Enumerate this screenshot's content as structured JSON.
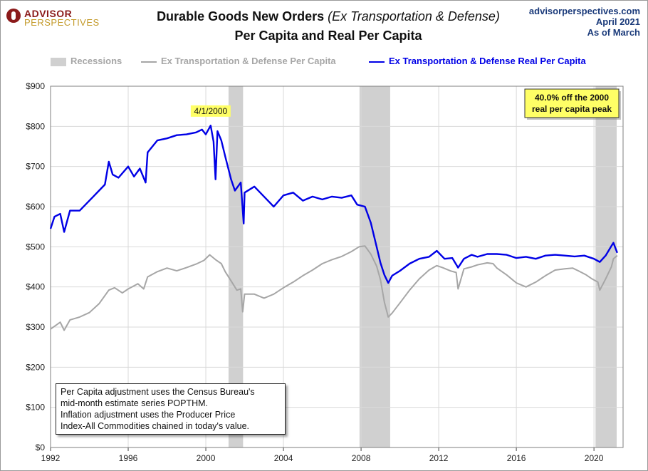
{
  "header": {
    "logo_top": "ADVISOR",
    "logo_bottom": "PERSPECTIVES",
    "title_main": "Durable Goods New Orders",
    "title_italic": "(Ex Transportation & Defense)",
    "title_line2": "Per Capita and Real Per Capita",
    "source_site": "advisorperspectives.com",
    "source_date": "April 2021",
    "source_asof": "As of March"
  },
  "legend": {
    "recessions": "Recessions",
    "per_capita": "Ex Transportation & Defense Per Capita",
    "real_per_capita": "Ex Transportation & Defense Real Per Capita"
  },
  "colors": {
    "recession": "#d0d0d0",
    "per_capita": "#a6a6a6",
    "real_per_capita": "#0000e6",
    "callout_bg": "#ffff66",
    "grid": "#d9d9d9"
  },
  "note": {
    "line1": "Per Capita adjustment uses the Census Bureau's",
    "line2": "mid-month estimate series POPTHM.",
    "line3": "Inflation adjustment uses the Producer Price",
    "line4": "Index-All Commodities chained in today's value."
  },
  "chart_data": {
    "type": "line",
    "xlim": [
      1992,
      2021.5
    ],
    "ylim": [
      0,
      900
    ],
    "x_ticks": [
      1992,
      1996,
      2000,
      2004,
      2008,
      2012,
      2016,
      2020
    ],
    "x_tick_labels": [
      "1992",
      "1996",
      "2000",
      "2004",
      "2008",
      "2012",
      "2016",
      "2020"
    ],
    "y_ticks": [
      0,
      100,
      200,
      300,
      400,
      500,
      600,
      700,
      800,
      900
    ],
    "y_tick_labels": [
      "$0",
      "$100",
      "$200",
      "$300",
      "$400",
      "$500",
      "$600",
      "$700",
      "$800",
      "$900"
    ],
    "grid": true,
    "recessions": [
      [
        2001.17,
        2001.92
      ],
      [
        2007.92,
        2009.5
      ],
      [
        2020.08,
        2021.17
      ]
    ],
    "annotations": [
      {
        "text": "4/1/2000",
        "x": 2000.25,
        "y": 808
      },
      {
        "text": "40.0% off the 2000",
        "text2": "real per capita peak",
        "position": "top-right"
      }
    ],
    "series": [
      {
        "name": "Ex Transportation & Defense Per Capita",
        "points": [
          [
            1992.0,
            295
          ],
          [
            1992.5,
            312
          ],
          [
            1992.7,
            292
          ],
          [
            1993.0,
            318
          ],
          [
            1993.5,
            325
          ],
          [
            1994.0,
            336
          ],
          [
            1994.5,
            358
          ],
          [
            1995.0,
            392
          ],
          [
            1995.3,
            398
          ],
          [
            1995.7,
            385
          ],
          [
            1996.0,
            395
          ],
          [
            1996.5,
            408
          ],
          [
            1996.8,
            395
          ],
          [
            1997.0,
            425
          ],
          [
            1997.5,
            438
          ],
          [
            1998.0,
            447
          ],
          [
            1998.5,
            440
          ],
          [
            1999.0,
            448
          ],
          [
            1999.5,
            457
          ],
          [
            1999.9,
            466
          ],
          [
            2000.2,
            480
          ],
          [
            2000.5,
            468
          ],
          [
            2000.8,
            458
          ],
          [
            2001.0,
            438
          ],
          [
            2001.3,
            415
          ],
          [
            2001.6,
            392
          ],
          [
            2001.8,
            395
          ],
          [
            2001.9,
            338
          ],
          [
            2002.0,
            382
          ],
          [
            2002.5,
            382
          ],
          [
            2003.0,
            372
          ],
          [
            2003.5,
            382
          ],
          [
            2004.0,
            398
          ],
          [
            2004.5,
            412
          ],
          [
            2005.0,
            428
          ],
          [
            2005.5,
            442
          ],
          [
            2006.0,
            458
          ],
          [
            2006.5,
            468
          ],
          [
            2007.0,
            476
          ],
          [
            2007.5,
            488
          ],
          [
            2007.9,
            500
          ],
          [
            2008.2,
            502
          ],
          [
            2008.5,
            482
          ],
          [
            2008.8,
            452
          ],
          [
            2009.0,
            418
          ],
          [
            2009.2,
            362
          ],
          [
            2009.4,
            325
          ],
          [
            2009.6,
            335
          ],
          [
            2010.0,
            360
          ],
          [
            2010.5,
            392
          ],
          [
            2011.0,
            420
          ],
          [
            2011.5,
            442
          ],
          [
            2011.9,
            453
          ],
          [
            2012.2,
            448
          ],
          [
            2012.6,
            440
          ],
          [
            2012.9,
            436
          ],
          [
            2013.0,
            395
          ],
          [
            2013.3,
            445
          ],
          [
            2013.7,
            450
          ],
          [
            2014.0,
            455
          ],
          [
            2014.5,
            460
          ],
          [
            2014.8,
            458
          ],
          [
            2015.0,
            447
          ],
          [
            2015.5,
            430
          ],
          [
            2016.0,
            410
          ],
          [
            2016.5,
            400
          ],
          [
            2017.0,
            412
          ],
          [
            2017.5,
            428
          ],
          [
            2018.0,
            442
          ],
          [
            2018.5,
            445
          ],
          [
            2018.9,
            447
          ],
          [
            2019.2,
            440
          ],
          [
            2019.6,
            430
          ],
          [
            2019.9,
            420
          ],
          [
            2020.2,
            412
          ],
          [
            2020.3,
            392
          ],
          [
            2020.6,
            420
          ],
          [
            2020.9,
            450
          ],
          [
            2021.0,
            470
          ],
          [
            2021.2,
            478
          ]
        ]
      },
      {
        "name": "Ex Transportation & Defense Real Per Capita",
        "points": [
          [
            1992.0,
            545
          ],
          [
            1992.2,
            575
          ],
          [
            1992.5,
            582
          ],
          [
            1992.7,
            537
          ],
          [
            1993.0,
            590
          ],
          [
            1993.5,
            590
          ],
          [
            1994.0,
            615
          ],
          [
            1994.5,
            640
          ],
          [
            1994.8,
            655
          ],
          [
            1995.0,
            712
          ],
          [
            1995.2,
            680
          ],
          [
            1995.5,
            672
          ],
          [
            1996.0,
            700
          ],
          [
            1996.3,
            675
          ],
          [
            1996.6,
            695
          ],
          [
            1996.9,
            660
          ],
          [
            1997.0,
            735
          ],
          [
            1997.5,
            765
          ],
          [
            1998.0,
            770
          ],
          [
            1998.5,
            778
          ],
          [
            1999.0,
            780
          ],
          [
            1999.5,
            785
          ],
          [
            1999.8,
            792
          ],
          [
            2000.0,
            780
          ],
          [
            2000.25,
            802
          ],
          [
            2000.4,
            762
          ],
          [
            2000.5,
            668
          ],
          [
            2000.6,
            788
          ],
          [
            2000.8,
            765
          ],
          [
            2001.0,
            725
          ],
          [
            2001.3,
            668
          ],
          [
            2001.5,
            640
          ],
          [
            2001.8,
            660
          ],
          [
            2001.95,
            558
          ],
          [
            2002.0,
            635
          ],
          [
            2002.5,
            650
          ],
          [
            2003.0,
            625
          ],
          [
            2003.5,
            600
          ],
          [
            2004.0,
            628
          ],
          [
            2004.5,
            635
          ],
          [
            2005.0,
            615
          ],
          [
            2005.5,
            625
          ],
          [
            2006.0,
            618
          ],
          [
            2006.5,
            625
          ],
          [
            2007.0,
            622
          ],
          [
            2007.5,
            628
          ],
          [
            2007.8,
            605
          ],
          [
            2008.2,
            600
          ],
          [
            2008.5,
            560
          ],
          [
            2008.8,
            500
          ],
          [
            2009.0,
            460
          ],
          [
            2009.2,
            430
          ],
          [
            2009.4,
            410
          ],
          [
            2009.6,
            428
          ],
          [
            2010.0,
            440
          ],
          [
            2010.5,
            458
          ],
          [
            2011.0,
            470
          ],
          [
            2011.5,
            475
          ],
          [
            2011.9,
            490
          ],
          [
            2012.3,
            470
          ],
          [
            2012.7,
            472
          ],
          [
            2013.0,
            448
          ],
          [
            2013.3,
            470
          ],
          [
            2013.7,
            480
          ],
          [
            2014.0,
            475
          ],
          [
            2014.5,
            482
          ],
          [
            2015.0,
            482
          ],
          [
            2015.5,
            480
          ],
          [
            2016.0,
            472
          ],
          [
            2016.5,
            475
          ],
          [
            2017.0,
            470
          ],
          [
            2017.5,
            478
          ],
          [
            2018.0,
            480
          ],
          [
            2018.5,
            478
          ],
          [
            2019.0,
            476
          ],
          [
            2019.5,
            478
          ],
          [
            2020.0,
            470
          ],
          [
            2020.3,
            462
          ],
          [
            2020.6,
            478
          ],
          [
            2020.9,
            502
          ],
          [
            2021.0,
            510
          ],
          [
            2021.2,
            485
          ]
        ]
      }
    ]
  }
}
